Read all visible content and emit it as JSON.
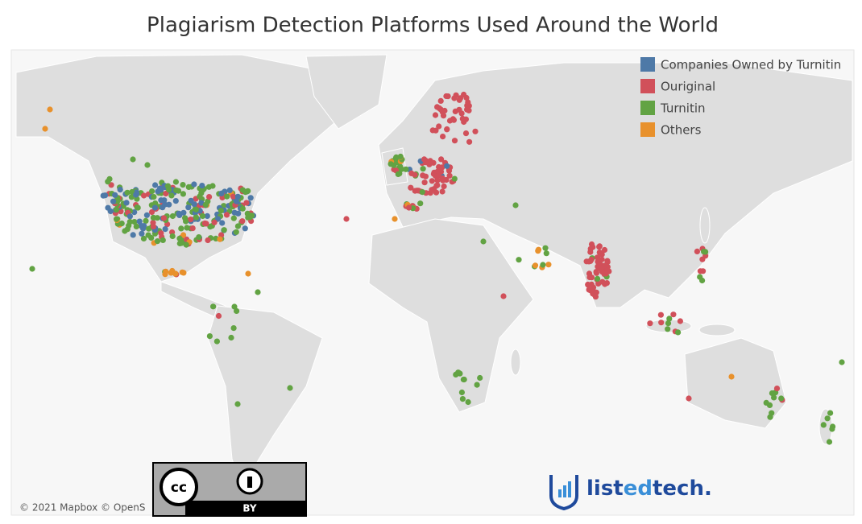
{
  "title": "Plagiarism Detection Platforms Used Around the World",
  "legend": {
    "items": [
      {
        "label": "Companies Owned by Turnitin",
        "color": "#4e79a7"
      },
      {
        "label": "Ouriginal",
        "color": "#d1505a"
      },
      {
        "label": "Turnitin",
        "color": "#62a343"
      },
      {
        "label": "Others",
        "color": "#e8912c"
      }
    ]
  },
  "attribution": "© 2021 Mapbox © OpenS",
  "license": {
    "icon": "cc",
    "label": "BY"
  },
  "logo": {
    "prefix": "list",
    "highlight": "ed",
    "suffix": "tech."
  }
}
